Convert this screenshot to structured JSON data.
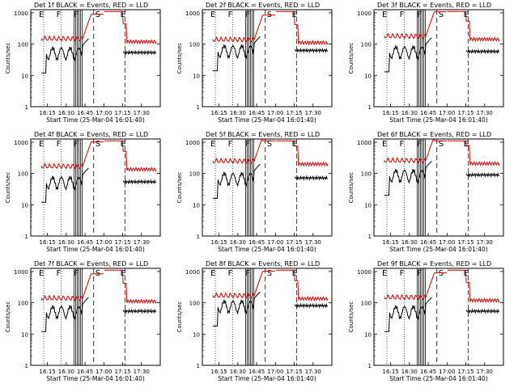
{
  "figure": {
    "xlabel": "Start Time (25-Mar-04 16:01:40)",
    "ylabel": "Counts/sec",
    "title_suffix": "BLACK = Events, RED = LLD",
    "colors": {
      "events": "#000000",
      "lld": "#d00000",
      "axes": "#000000",
      "background": "#ffffff"
    }
  },
  "chart_data": [
    {
      "type": "line",
      "title": "Det 1f BLACK = Events, RED = LLD",
      "yscale": "log",
      "ylim": [
        1,
        1000
      ],
      "xlim": [
        "16:01:40",
        "17:45:00"
      ],
      "xticks": [
        "16:15",
        "16:30",
        "16:45",
        "17:00",
        "17:15",
        "17:30"
      ],
      "yticks": [
        "1",
        "10",
        "100",
        "1000"
      ],
      "markers": [
        {
          "label": "E",
          "at": "16:12"
        },
        {
          "label": "F",
          "at": "16:26"
        },
        {
          "label": "F",
          "at": "16:40"
        },
        {
          "label": "S",
          "at": "16:48"
        },
        {
          "label": "E",
          "at": "17:17"
        }
      ],
      "series": [
        {
          "name": "Events",
          "color": "#000000",
          "base": 60
        },
        {
          "name": "LLD",
          "color": "#d00000",
          "base": 150
        }
      ]
    },
    {
      "type": "line",
      "title": "Det 2f BLACK = Events, RED = LLD",
      "yscale": "log",
      "ylim": [
        1,
        1000
      ],
      "xlim": [
        "16:01:40",
        "17:45:00"
      ],
      "xticks": [
        "16:15",
        "16:30",
        "16:45",
        "17:00",
        "17:15",
        "17:30"
      ],
      "yticks": [
        "1",
        "10",
        "100",
        "1000"
      ],
      "markers": [
        {
          "label": "E",
          "at": "16:12"
        },
        {
          "label": "F",
          "at": "16:26"
        },
        {
          "label": "F",
          "at": "16:40"
        },
        {
          "label": "S",
          "at": "16:48"
        },
        {
          "label": "E",
          "at": "17:17"
        }
      ],
      "series": [
        {
          "name": "Events",
          "color": "#000000",
          "base": 70
        },
        {
          "name": "LLD",
          "color": "#d00000",
          "base": 140
        }
      ]
    },
    {
      "type": "line",
      "title": "Det 3f BLACK = Events, RED = LLD",
      "yscale": "log",
      "ylim": [
        1,
        1000
      ],
      "xlim": [
        "16:01:40",
        "17:45:00"
      ],
      "xticks": [
        "16:15",
        "16:30",
        "16:45",
        "17:00",
        "17:15",
        "17:30"
      ],
      "yticks": [
        "1",
        "10",
        "100",
        "1000"
      ],
      "markers": [
        {
          "label": "E",
          "at": "16:12"
        },
        {
          "label": "F",
          "at": "16:26"
        },
        {
          "label": "F",
          "at": "16:40"
        },
        {
          "label": "S",
          "at": "16:48"
        },
        {
          "label": "E",
          "at": "17:17"
        }
      ],
      "series": [
        {
          "name": "Events",
          "color": "#000000",
          "base": 65
        },
        {
          "name": "LLD",
          "color": "#d00000",
          "base": 180
        }
      ]
    },
    {
      "type": "line",
      "title": "Det 4f BLACK = Events, RED = LLD",
      "yscale": "log",
      "ylim": [
        1,
        1000
      ],
      "xlim": [
        "16:01:40",
        "17:45:00"
      ],
      "xticks": [
        "16:15",
        "16:30",
        "16:45",
        "17:00",
        "17:15",
        "17:30"
      ],
      "yticks": [
        "1",
        "10",
        "100",
        "1000"
      ],
      "markers": [
        {
          "label": "E",
          "at": "16:12"
        },
        {
          "label": "F",
          "at": "16:26"
        },
        {
          "label": "F",
          "at": "16:40"
        },
        {
          "label": "S",
          "at": "16:48"
        },
        {
          "label": "E",
          "at": "17:17"
        }
      ],
      "series": [
        {
          "name": "Events",
          "color": "#000000",
          "base": 60
        },
        {
          "name": "LLD",
          "color": "#d00000",
          "base": 170
        }
      ]
    },
    {
      "type": "line",
      "title": "Det 5f BLACK = Events, RED = LLD",
      "yscale": "log",
      "ylim": [
        1,
        1000
      ],
      "xlim": [
        "16:01:40",
        "17:45:00"
      ],
      "xticks": [
        "16:15",
        "16:30",
        "16:45",
        "17:00",
        "17:15",
        "17:30"
      ],
      "yticks": [
        "1",
        "10",
        "100",
        "1000"
      ],
      "markers": [
        {
          "label": "E",
          "at": "16:12"
        },
        {
          "label": "F",
          "at": "16:26"
        },
        {
          "label": "F",
          "at": "16:40"
        },
        {
          "label": "S",
          "at": "16:48"
        },
        {
          "label": "E",
          "at": "17:17"
        }
      ],
      "series": [
        {
          "name": "Events",
          "color": "#000000",
          "base": 80
        },
        {
          "name": "LLD",
          "color": "#d00000",
          "base": 250
        }
      ]
    },
    {
      "type": "line",
      "title": "Det 6f BLACK = Events, RED = LLD",
      "yscale": "log",
      "ylim": [
        1,
        1000
      ],
      "xlim": [
        "16:01:40",
        "17:45:00"
      ],
      "xticks": [
        "16:15",
        "16:30",
        "16:45",
        "17:00",
        "17:15",
        "17:30"
      ],
      "yticks": [
        "1",
        "10",
        "100",
        "1000"
      ],
      "markers": [
        {
          "label": "E",
          "at": "16:12"
        },
        {
          "label": "F",
          "at": "16:26"
        },
        {
          "label": "F",
          "at": "16:40"
        },
        {
          "label": "S",
          "at": "16:48"
        },
        {
          "label": "E",
          "at": "17:17"
        }
      ],
      "series": [
        {
          "name": "Events",
          "color": "#000000",
          "base": 100
        },
        {
          "name": "LLD",
          "color": "#d00000",
          "base": 260
        }
      ]
    },
    {
      "type": "line",
      "title": "Det 7f BLACK = Events, RED = LLD",
      "yscale": "log",
      "ylim": [
        1,
        1000
      ],
      "xlim": [
        "16:01:40",
        "17:45:00"
      ],
      "xticks": [
        "16:15",
        "16:30",
        "16:45",
        "17:00",
        "17:15",
        "17:30"
      ],
      "yticks": [
        "1",
        "10",
        "100",
        "1000"
      ],
      "markers": [
        {
          "label": "E",
          "at": "16:12"
        },
        {
          "label": "F",
          "at": "16:26"
        },
        {
          "label": "F",
          "at": "16:40"
        },
        {
          "label": "S",
          "at": "16:48"
        },
        {
          "label": "E",
          "at": "17:17"
        }
      ],
      "series": [
        {
          "name": "Events",
          "color": "#000000",
          "base": 60
        },
        {
          "name": "LLD",
          "color": "#d00000",
          "base": 140
        }
      ]
    },
    {
      "type": "line",
      "title": "Det 8f BLACK = Events, RED = LLD",
      "yscale": "log",
      "ylim": [
        1,
        1000
      ],
      "xlim": [
        "16:01:40",
        "17:45:00"
      ],
      "xticks": [
        "16:15",
        "16:30",
        "16:45",
        "17:00",
        "17:15",
        "17:30"
      ],
      "yticks": [
        "1",
        "10",
        "100",
        "1000"
      ],
      "markers": [
        {
          "label": "E",
          "at": "16:12"
        },
        {
          "label": "F",
          "at": "16:26"
        },
        {
          "label": "F",
          "at": "16:40"
        },
        {
          "label": "S",
          "at": "16:48"
        },
        {
          "label": "E",
          "at": "17:17"
        }
      ],
      "series": [
        {
          "name": "Events",
          "color": "#000000",
          "base": 90
        },
        {
          "name": "LLD",
          "color": "#d00000",
          "base": 170
        }
      ]
    },
    {
      "type": "line",
      "title": "Det 9f BLACK = Events, RED = LLD",
      "yscale": "log",
      "ylim": [
        1,
        1000
      ],
      "xlim": [
        "16:01:40",
        "17:45:00"
      ],
      "xticks": [
        "16:15",
        "16:30",
        "16:45",
        "17:00",
        "17:15",
        "17:30"
      ],
      "yticks": [
        "1",
        "10",
        "100",
        "1000"
      ],
      "markers": [
        {
          "label": "E",
          "at": "16:12"
        },
        {
          "label": "F",
          "at": "16:26"
        },
        {
          "label": "F",
          "at": "16:40"
        },
        {
          "label": "S",
          "at": "16:48"
        },
        {
          "label": "E",
          "at": "17:17"
        }
      ],
      "series": [
        {
          "name": "Events",
          "color": "#000000",
          "base": 60
        },
        {
          "name": "LLD",
          "color": "#d00000",
          "base": 150
        }
      ]
    }
  ]
}
